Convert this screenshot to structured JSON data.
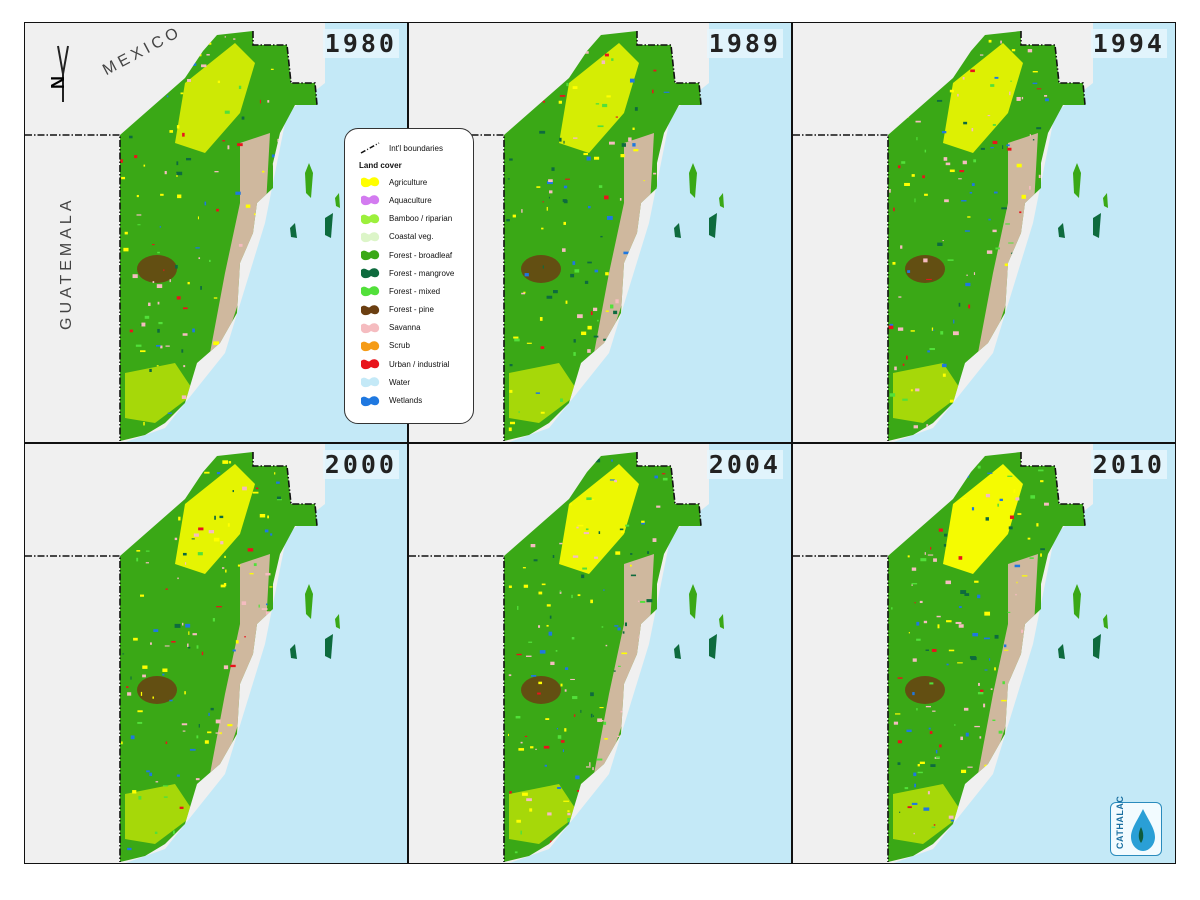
{
  "panels": [
    {
      "year": "1980"
    },
    {
      "year": "1989"
    },
    {
      "year": "1994"
    },
    {
      "year": "2000"
    },
    {
      "year": "2004"
    },
    {
      "year": "2010"
    }
  ],
  "labels": {
    "mexico": "MEXICO",
    "guatemala": "GUATEMALA",
    "north_symbol": "N"
  },
  "legend": {
    "boundaries": "Int'l boundaries",
    "title": "Land cover",
    "items": [
      {
        "label": "Agriculture",
        "color": "#ffff00"
      },
      {
        "label": "Aquaculture",
        "color": "#d37bf0"
      },
      {
        "label": "Bamboo / riparian",
        "color": "#9cf03c"
      },
      {
        "label": "Coastal veg.",
        "color": "#dcf5c8"
      },
      {
        "label": "Forest - broadleaf",
        "color": "#3aa816"
      },
      {
        "label": "Forest - mangrove",
        "color": "#0e6b3e"
      },
      {
        "label": "Forest - mixed",
        "color": "#52e03a"
      },
      {
        "label": "Forest - pine",
        "color": "#6b3f12"
      },
      {
        "label": "Savanna",
        "color": "#f5bcc0"
      },
      {
        "label": "Scrub",
        "color": "#f59b16"
      },
      {
        "label": "Urban / industrial",
        "color": "#e8141c"
      },
      {
        "label": "Water",
        "color": "#c4e9f7"
      },
      {
        "label": "Wetlands",
        "color": "#1f78e0"
      }
    ]
  },
  "logo": {
    "text": "CATHALAC"
  }
}
